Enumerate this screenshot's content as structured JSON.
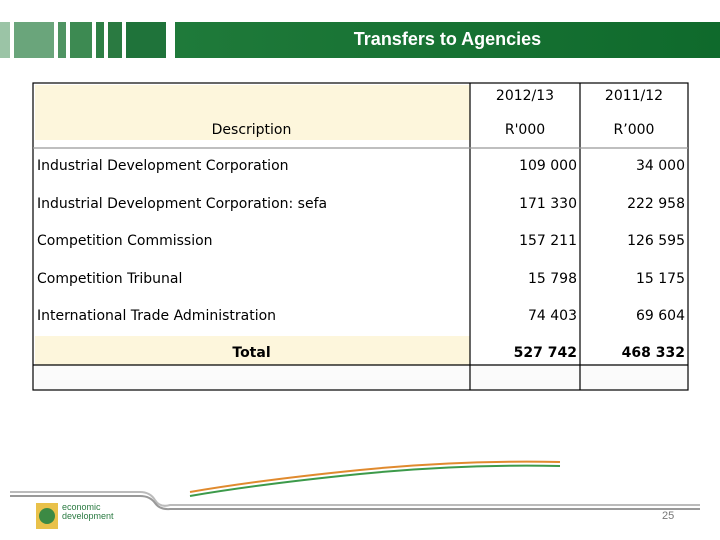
{
  "header": {
    "title": "Transfers to Agencies"
  },
  "table": {
    "description_header": "Description",
    "columns": [
      {
        "period": "2012/13",
        "unit": "R'000"
      },
      {
        "period": "2011/12",
        "unit": "R’000"
      }
    ],
    "rows": [
      [
        "Industrial Development Corporation",
        "109 000",
        "34 000"
      ],
      [
        "Industrial Development Corporation:  sefa",
        "171 330",
        "222 958"
      ],
      [
        "Competition Commission",
        "157 211",
        "126 595"
      ],
      [
        "Competition Tribunal",
        "15 798",
        "15 175"
      ],
      [
        "International Trade Administration",
        "74 403",
        "69 604"
      ]
    ],
    "total": [
      "Total",
      "527 742",
      "468 332"
    ]
  },
  "footer": {
    "logo": [
      "economic",
      "development"
    ],
    "page": "25"
  }
}
